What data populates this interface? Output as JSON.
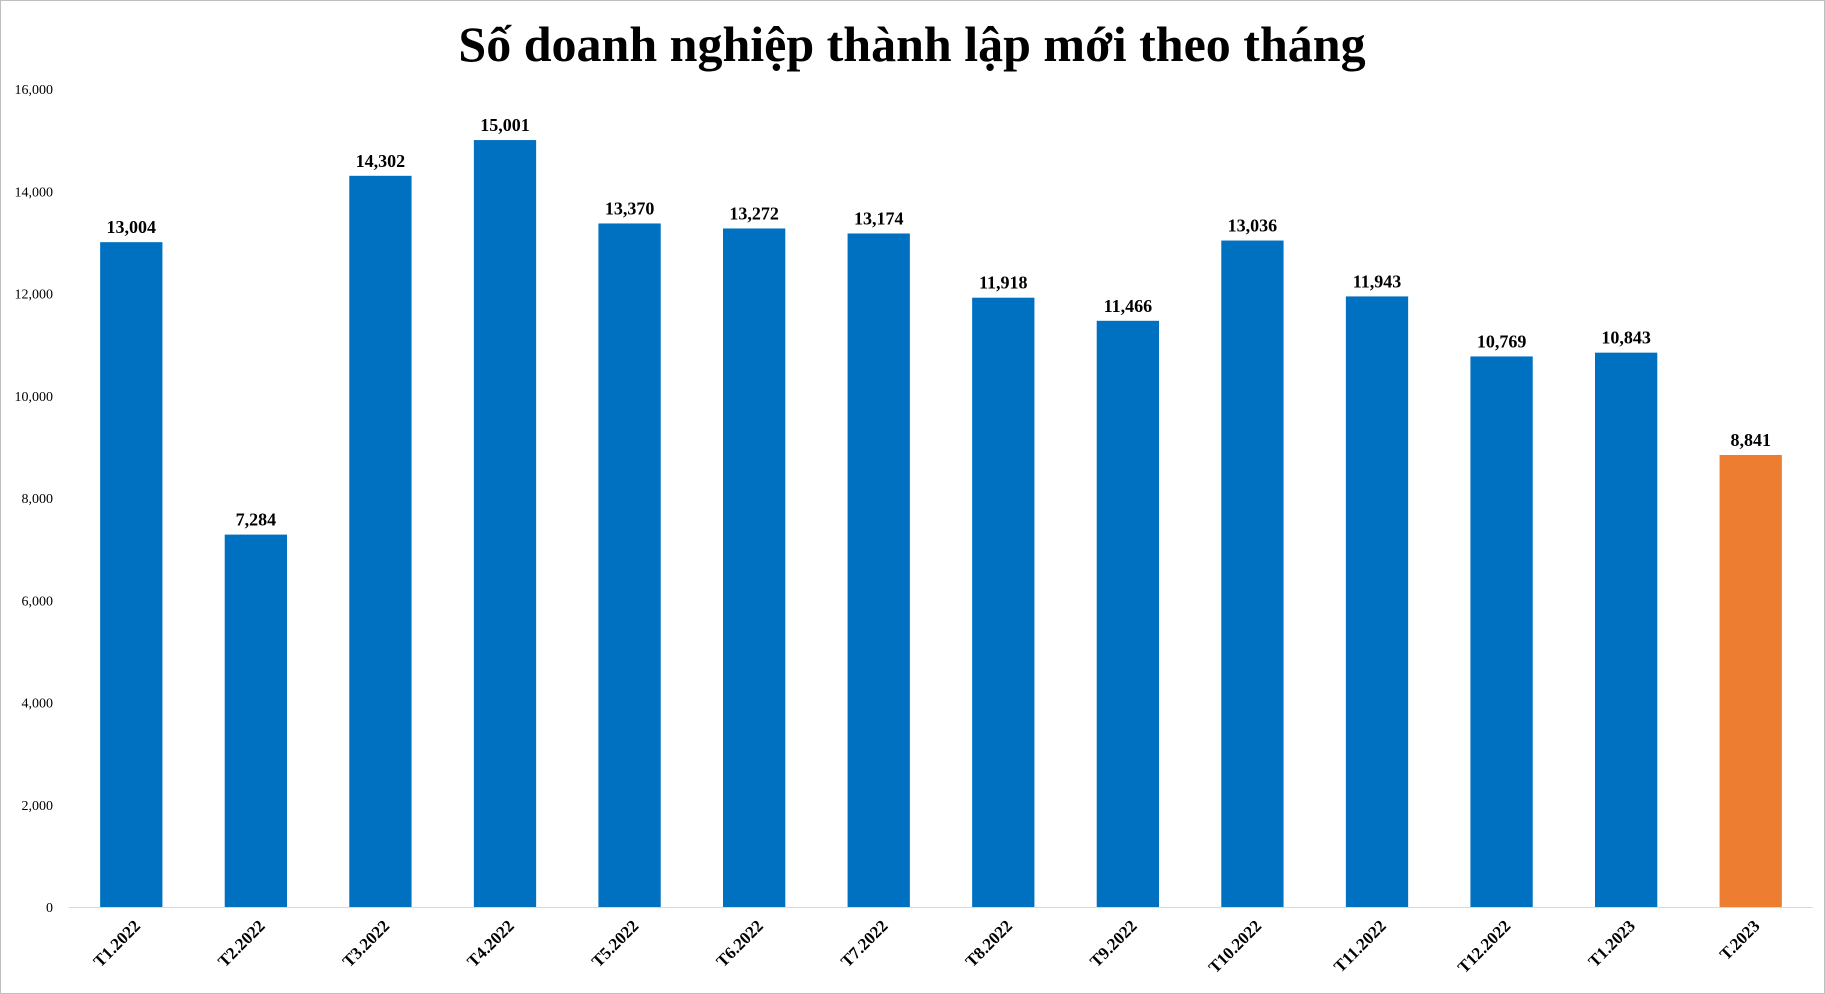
{
  "chart_data": {
    "type": "bar",
    "title": "Số doanh nghiệp thành lập mới theo tháng",
    "xlabel": "",
    "ylabel": "",
    "categories": [
      "T1.2022",
      "T2.2022",
      "T3.2022",
      "T4.2022",
      "T5.2022",
      "T6.2022",
      "T7.2022",
      "T8.2022",
      "T9.2022",
      "T10.2022",
      "T11.2022",
      "T12.2022",
      "T1.2023",
      "T.2023"
    ],
    "values": [
      13004,
      7284,
      14302,
      15001,
      13370,
      13272,
      13174,
      11918,
      11466,
      13036,
      11943,
      10769,
      10843,
      8841
    ],
    "value_labels": [
      "13,004",
      "7,284",
      "14,302",
      "15,001",
      "13,370",
      "13,272",
      "13,174",
      "11,918",
      "11,466",
      "13,036",
      "11,943",
      "10,769",
      "10,843",
      "8,841"
    ],
    "ylim": [
      0,
      16000
    ],
    "yticks": [
      "0",
      "2,000",
      "4,000",
      "6,000",
      "8,000",
      "10,000",
      "12,000",
      "14,000",
      "16,000"
    ],
    "ytick_values": [
      0,
      2000,
      4000,
      6000,
      8000,
      10000,
      12000,
      14000,
      16000
    ],
    "grid": false,
    "legend": "none",
    "colors": {
      "bar": "#0070C0",
      "highlight": "#ED7D31",
      "axis": "#d9d9d9"
    },
    "highlight_index": 13
  }
}
